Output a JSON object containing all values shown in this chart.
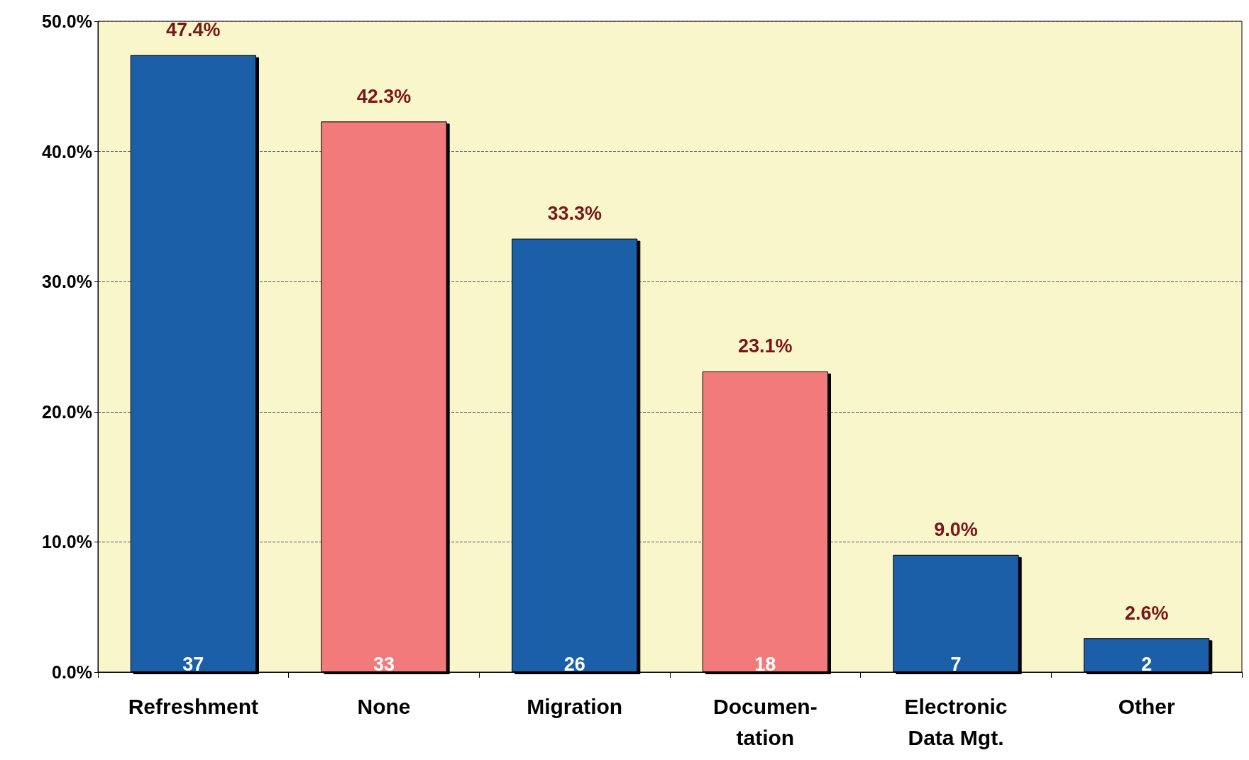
{
  "chart_data": {
    "type": "bar",
    "categories": [
      "Refreshment",
      "None",
      "Migration",
      "Documen-\ntation",
      "Electronic\nData Mgt.",
      "Other"
    ],
    "values": [
      47.4,
      42.3,
      33.3,
      23.1,
      9.0,
      2.6
    ],
    "value_labels": [
      "47.4%",
      "42.3%",
      "33.3%",
      "23.1%",
      "9.0%",
      "2.6%"
    ],
    "colors": [
      "#1f5fa9",
      "#f27a7a",
      "#1f5fa9",
      "#f27a7a",
      "#1f5fa9",
      "#1f5fa9"
    ],
    "ylim": [
      0,
      50
    ],
    "yticks": [
      {
        "value": 0,
        "label": "0.0%"
      },
      {
        "value": 10,
        "label": "10.0%"
      },
      {
        "value": 20,
        "label": "20.0%"
      },
      {
        "value": 30,
        "label": "30.0%"
      },
      {
        "value": 40,
        "label": "40.0%"
      },
      {
        "value": 50,
        "label": "50.0%"
      }
    ],
    "grid": "y",
    "annotations": [
      {
        "text": "37",
        "x": "Refreshment",
        "y": 0
      },
      {
        "text": "33",
        "x": "None",
        "y": 0
      },
      {
        "text": "26",
        "x": "Migration",
        "y": 0
      },
      {
        "text": "18",
        "x": "Documen-\ntation",
        "y": 0
      },
      {
        "text": "7",
        "x": "Electronic\nData Mgt.",
        "y": 0
      },
      {
        "text": "2",
        "x": "Other",
        "y": 0
      }
    ]
  }
}
